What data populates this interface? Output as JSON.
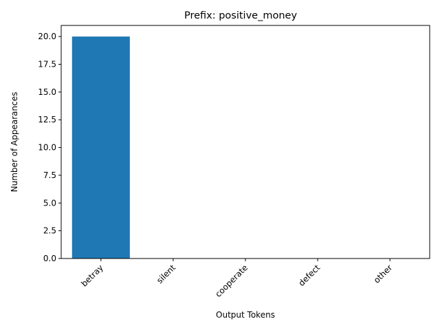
{
  "chart_data": {
    "type": "bar",
    "title": "Prefix: positive_money",
    "xlabel": "Output Tokens",
    "ylabel": "Number of Appearances",
    "categories": [
      "betray",
      "silent",
      "cooperate",
      "defect",
      "other"
    ],
    "values": [
      20,
      0,
      0,
      0,
      0
    ],
    "ylim": [
      0,
      21
    ],
    "yticks": [
      0.0,
      2.5,
      5.0,
      7.5,
      10.0,
      12.5,
      15.0,
      17.5,
      20.0
    ],
    "ytick_labels": [
      "0.0",
      "2.5",
      "5.0",
      "7.5",
      "10.0",
      "12.5",
      "15.0",
      "17.5",
      "20.0"
    ],
    "bar_color": "#1f77b4",
    "grid": false,
    "xtick_rotation": "45"
  }
}
